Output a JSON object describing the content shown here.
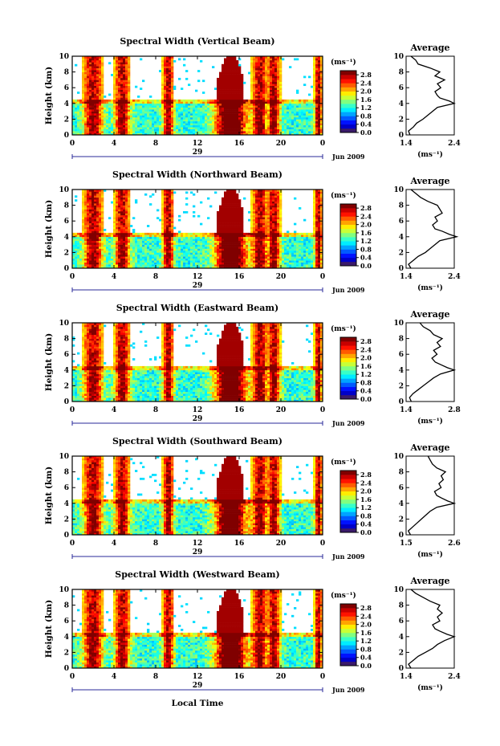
{
  "figure": {
    "ylabel": "Height (km)",
    "xlabel": "Local Time",
    "unit_label": "(ms⁻¹)",
    "avg_title": "Average",
    "avg_unit": "(ms⁻¹)",
    "month_label": "Jun 2009",
    "day_label": "29",
    "x_ticks": [
      "0",
      "4",
      "8",
      "12",
      "16",
      "20",
      "0"
    ],
    "y_ticks": [
      "0",
      "2",
      "4",
      "6",
      "8",
      "10"
    ],
    "colorbar_ticks": [
      "0.0",
      "0.4",
      "0.8",
      "1.2",
      "1.6",
      "2.0",
      "2.4",
      "2.8"
    ]
  },
  "chart_data": [
    {
      "type": "heatmap",
      "title": "Spectral Width (Vertical Beam)",
      "xlabel": "",
      "ylabel": "Height (km)",
      "xlim": [
        0,
        24
      ],
      "ylim": [
        0,
        10
      ],
      "clim": [
        0,
        3.0
      ],
      "average_profile": {
        "xlim": [
          1.4,
          2.4
        ],
        "xticks": [
          "1.4",
          "2.4"
        ],
        "height": [
          0,
          0.5,
          1,
          1.5,
          2,
          2.5,
          3,
          3.5,
          4,
          4.3,
          4.7,
          5,
          5.5,
          6,
          6.5,
          7,
          7.5,
          8,
          8.5,
          9,
          9.5,
          10
        ],
        "width": [
          1.48,
          1.45,
          1.55,
          1.62,
          1.75,
          1.85,
          1.95,
          2.05,
          2.4,
          2.3,
          2.1,
          2.05,
          2.0,
          2.12,
          2.05,
          2.2,
          2.0,
          2.1,
          1.9,
          1.65,
          1.6,
          1.5
        ]
      }
    },
    {
      "type": "heatmap",
      "title": "Spectral Width (Northward Beam)",
      "xlabel": "",
      "ylabel": "Height (km)",
      "xlim": [
        0,
        24
      ],
      "ylim": [
        0,
        10
      ],
      "clim": [
        0,
        3.0
      ],
      "average_profile": {
        "xlim": [
          1.4,
          2.4
        ],
        "xticks": [
          "1.4",
          "2.4"
        ],
        "height": [
          0,
          0.5,
          1,
          1.5,
          2,
          2.5,
          3,
          3.5,
          4,
          4.3,
          4.7,
          5,
          5.5,
          6,
          6.5,
          7,
          7.5,
          8,
          8.5,
          9,
          9.5,
          10
        ],
        "width": [
          1.5,
          1.45,
          1.55,
          1.65,
          1.8,
          1.9,
          2.0,
          2.1,
          2.45,
          2.3,
          2.15,
          2.0,
          1.95,
          2.05,
          2.0,
          2.15,
          2.1,
          2.05,
          1.85,
          1.7,
          1.6,
          1.5
        ]
      }
    },
    {
      "type": "heatmap",
      "title": "Spectral Width (Eastward Beam)",
      "xlabel": "",
      "ylabel": "Height (km)",
      "xlim": [
        0,
        24
      ],
      "ylim": [
        0,
        10
      ],
      "clim": [
        0,
        3.0
      ],
      "average_profile": {
        "xlim": [
          1.4,
          2.8
        ],
        "xticks": [
          "1.4",
          "2.8"
        ],
        "height": [
          0,
          0.5,
          1,
          1.5,
          2,
          2.5,
          3,
          3.5,
          4,
          4.3,
          4.7,
          5,
          5.5,
          6,
          6.5,
          7,
          7.5,
          8,
          8.5,
          9,
          9.5,
          10
        ],
        "width": [
          1.55,
          1.5,
          1.6,
          1.75,
          1.9,
          2.05,
          2.2,
          2.4,
          2.8,
          2.6,
          2.4,
          2.25,
          2.15,
          2.3,
          2.2,
          2.4,
          2.3,
          2.45,
          2.2,
          2.1,
          1.9,
          1.8
        ]
      }
    },
    {
      "type": "heatmap",
      "title": "Spectral Width (Southward Beam)",
      "xlabel": "",
      "ylabel": "Height (km)",
      "xlim": [
        0,
        24
      ],
      "ylim": [
        0,
        10
      ],
      "clim": [
        0,
        3.0
      ],
      "average_profile": {
        "xlim": [
          1.5,
          2.6
        ],
        "xticks": [
          "1.5",
          "2.6"
        ],
        "height": [
          0,
          0.5,
          1,
          1.5,
          2,
          2.5,
          3,
          3.5,
          4,
          4.3,
          4.7,
          5,
          5.5,
          6,
          6.5,
          7,
          7.5,
          8,
          8.5,
          9,
          9.5,
          10
        ],
        "width": [
          1.6,
          1.55,
          1.65,
          1.75,
          1.85,
          1.95,
          2.05,
          2.2,
          2.6,
          2.45,
          2.3,
          2.2,
          2.15,
          2.3,
          2.25,
          2.35,
          2.3,
          2.4,
          2.2,
          2.1,
          2.05,
          2.0
        ]
      }
    },
    {
      "type": "heatmap",
      "title": "Spectral Width (Westward Beam)",
      "xlabel": "Local Time",
      "ylabel": "Height (km)",
      "xlim": [
        0,
        24
      ],
      "ylim": [
        0,
        10
      ],
      "clim": [
        0,
        3.0
      ],
      "average_profile": {
        "xlim": [
          1.4,
          2.4
        ],
        "xticks": [
          "1.4",
          "2.4"
        ],
        "height": [
          0,
          0.5,
          1,
          1.5,
          2,
          2.5,
          3,
          3.5,
          4,
          4.3,
          4.7,
          5,
          5.5,
          6,
          6.5,
          7,
          7.5,
          8,
          8.5,
          9,
          9.5,
          10
        ],
        "width": [
          1.5,
          1.45,
          1.55,
          1.65,
          1.8,
          1.95,
          2.05,
          2.2,
          2.4,
          2.25,
          2.1,
          2.0,
          1.95,
          2.1,
          2.05,
          2.15,
          2.05,
          2.1,
          1.9,
          1.75,
          1.6,
          1.5
        ]
      }
    }
  ]
}
